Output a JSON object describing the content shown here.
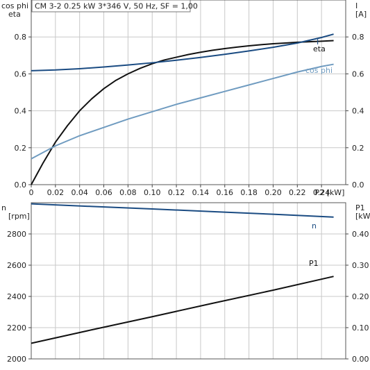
{
  "header": {
    "text": "CM 3-2   0.25 kW   3*346 V, 50 Hz, SF = 1,00"
  },
  "colors": {
    "eta": "#111111",
    "i": "#1a4b82",
    "cosphi": "#6f9bc0",
    "n": "#1a4b82",
    "p1": "#111111"
  },
  "chart_data": [
    {
      "type": "line",
      "name": "top",
      "x_label": "P2 [kW]",
      "xlim": [
        0,
        0.26
      ],
      "x_ticks": [
        0,
        0.02,
        0.04,
        0.06,
        0.08,
        0.1,
        0.12,
        0.14,
        0.16,
        0.18,
        0.2,
        0.22,
        0.24
      ],
      "x_tick_labels": [
        "0",
        "0.02",
        "0.04",
        "0.06",
        "0.08",
        "0.10",
        "0.12",
        "0.14",
        "0.16",
        "0.18",
        "0.20",
        "0.22",
        "0.24"
      ],
      "left_axis": {
        "label": [
          "cos phi",
          "eta"
        ],
        "ylim": [
          0,
          1.0
        ],
        "ticks": [
          0.0,
          0.2,
          0.4,
          0.6,
          0.8
        ],
        "tick_labels": [
          "0.0",
          "0.2",
          "0.4",
          "0.6",
          "0.8"
        ]
      },
      "right_axis": {
        "label": [
          "I",
          "[A]"
        ],
        "ylim": [
          0,
          1.0
        ],
        "ticks": [
          0.0,
          0.2,
          0.4,
          0.6,
          0.8
        ],
        "tick_labels": [
          "0.0",
          "0.2",
          "0.4",
          "0.6",
          "0.8"
        ]
      },
      "grid": true,
      "series": [
        {
          "name": "eta",
          "color_key": "eta",
          "axis": "left",
          "x": [
            0,
            0.005,
            0.01,
            0.015,
            0.02,
            0.03,
            0.04,
            0.05,
            0.06,
            0.07,
            0.08,
            0.09,
            0.1,
            0.11,
            0.12,
            0.13,
            0.14,
            0.15,
            0.16,
            0.17,
            0.18,
            0.19,
            0.2,
            0.21,
            0.22,
            0.23,
            0.24,
            0.25
          ],
          "y": [
            0,
            0.06,
            0.12,
            0.175,
            0.23,
            0.32,
            0.4,
            0.465,
            0.52,
            0.565,
            0.6,
            0.63,
            0.655,
            0.675,
            0.69,
            0.705,
            0.717,
            0.728,
            0.737,
            0.745,
            0.752,
            0.758,
            0.763,
            0.767,
            0.771,
            0.774,
            0.777,
            0.78
          ]
        },
        {
          "name": "I",
          "color_key": "i",
          "axis": "right",
          "x": [
            0,
            0.02,
            0.04,
            0.06,
            0.08,
            0.1,
            0.12,
            0.14,
            0.16,
            0.18,
            0.2,
            0.22,
            0.24,
            0.25
          ],
          "y": [
            0.617,
            0.621,
            0.628,
            0.637,
            0.648,
            0.66,
            0.674,
            0.689,
            0.706,
            0.724,
            0.744,
            0.767,
            0.797,
            0.815
          ]
        },
        {
          "name": "cos phi",
          "color_key": "cosphi",
          "axis": "left",
          "x": [
            0,
            0.02,
            0.04,
            0.06,
            0.08,
            0.1,
            0.12,
            0.14,
            0.16,
            0.18,
            0.2,
            0.22,
            0.24,
            0.25
          ],
          "y": [
            0.14,
            0.21,
            0.265,
            0.31,
            0.355,
            0.395,
            0.435,
            0.47,
            0.505,
            0.54,
            0.575,
            0.61,
            0.64,
            0.652
          ]
        }
      ]
    },
    {
      "type": "line",
      "name": "bottom",
      "xlim": [
        0,
        0.26
      ],
      "left_axis": {
        "label": [
          "n",
          "[rpm]"
        ],
        "ylim": [
          2000,
          3000
        ],
        "ticks": [
          2000,
          2200,
          2400,
          2600,
          2800
        ],
        "tick_labels": [
          "2000",
          "2200",
          "2400",
          "2600",
          "2800"
        ]
      },
      "right_axis": {
        "label": [
          "P1",
          "[kW]"
        ],
        "ylim": [
          0,
          0.5
        ],
        "ticks": [
          0,
          0.1,
          0.2,
          0.3,
          0.4
        ],
        "tick_labels": [
          "0.00",
          "0.10",
          "0.20",
          "0.30",
          "0.40"
        ]
      },
      "grid": true,
      "series": [
        {
          "name": "n",
          "color_key": "n",
          "axis": "left",
          "x": [
            0,
            0.05,
            0.1,
            0.15,
            0.2,
            0.25
          ],
          "y": [
            2993,
            2976,
            2960,
            2943,
            2926,
            2908
          ]
        },
        {
          "name": "P1",
          "color_key": "p1",
          "axis": "right",
          "x": [
            0,
            0.05,
            0.1,
            0.15,
            0.2,
            0.25
          ],
          "y": [
            0.05,
            0.093,
            0.135,
            0.178,
            0.22,
            0.264
          ]
        }
      ]
    }
  ]
}
